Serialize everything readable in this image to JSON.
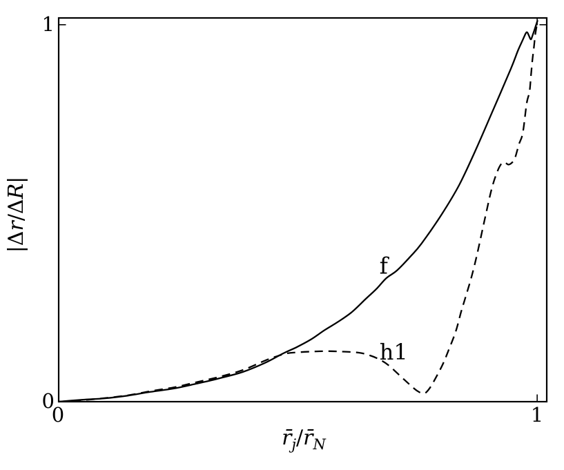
{
  "figure": {
    "background": "#ffffff",
    "line_color": "#000000"
  },
  "axes": {
    "ylabel_text": "|Δr/ΔR|",
    "ylabel_parts": [
      {
        "t": "|Δ"
      },
      {
        "t": "r"
      },
      {
        "t": "/Δ"
      },
      {
        "t": "R"
      },
      {
        "t": "|"
      }
    ],
    "xlabel_text": "r̄j/r̄N",
    "xlabel_parts": [
      {
        "t": "r̄"
      },
      {
        "t": "j"
      },
      {
        "t": "/"
      },
      {
        "t": "r̄"
      },
      {
        "t": "N"
      }
    ],
    "x_tick_labels": [
      "0",
      "1"
    ],
    "y_tick_labels": [
      "0",
      "1"
    ]
  },
  "chart_data": {
    "type": "line",
    "title": "",
    "xlabel": "r̄_j/r̄_N",
    "ylabel": "|Δr/ΔR|",
    "xlim": [
      0,
      1.02
    ],
    "ylim": [
      0,
      1.018
    ],
    "x_ticks": [
      0,
      1
    ],
    "y_ticks": [
      0,
      1
    ],
    "grid": false,
    "legend": "inline curve labels",
    "series": [
      {
        "name": "f",
        "line_style": "solid",
        "color": "#000000",
        "label_pos": {
          "x": 0.688,
          "y": 0.34,
          "anchor": "end"
        },
        "points": [
          [
            0.0,
            0.0
          ],
          [
            0.048,
            0.005
          ],
          [
            0.097,
            0.009
          ],
          [
            0.144,
            0.016
          ],
          [
            0.192,
            0.026
          ],
          [
            0.241,
            0.035
          ],
          [
            0.289,
            0.048
          ],
          [
            0.336,
            0.062
          ],
          [
            0.385,
            0.079
          ],
          [
            0.433,
            0.104
          ],
          [
            0.469,
            0.128
          ],
          [
            0.498,
            0.145
          ],
          [
            0.527,
            0.165
          ],
          [
            0.556,
            0.19
          ],
          [
            0.584,
            0.212
          ],
          [
            0.613,
            0.238
          ],
          [
            0.642,
            0.273
          ],
          [
            0.664,
            0.299
          ],
          [
            0.685,
            0.328
          ],
          [
            0.707,
            0.348
          ],
          [
            0.735,
            0.385
          ],
          [
            0.758,
            0.419
          ],
          [
            0.801,
            0.498
          ],
          [
            0.837,
            0.575
          ],
          [
            0.873,
            0.672
          ],
          [
            0.909,
            0.777
          ],
          [
            0.945,
            0.883
          ],
          [
            0.96,
            0.932
          ],
          [
            0.97,
            0.96
          ],
          [
            0.976,
            0.977
          ],
          [
            0.979,
            0.98
          ],
          [
            0.982,
            0.973
          ],
          [
            0.986,
            0.962
          ],
          [
            0.988,
            0.963
          ],
          [
            0.991,
            0.974
          ],
          [
            0.994,
            0.985
          ],
          [
            0.997,
            0.997
          ],
          [
            1.0,
            1.008
          ],
          [
            1.001,
            1.012
          ]
        ]
      },
      {
        "name": "h1",
        "line_style": "dashed",
        "color": "#000000",
        "label_pos": {
          "x": 0.7,
          "y": 0.112,
          "anchor": "middle"
        },
        "points": [
          [
            0.0,
            0.0
          ],
          [
            0.05,
            0.004
          ],
          [
            0.1,
            0.01
          ],
          [
            0.15,
            0.018
          ],
          [
            0.192,
            0.028
          ],
          [
            0.241,
            0.038
          ],
          [
            0.289,
            0.052
          ],
          [
            0.336,
            0.066
          ],
          [
            0.385,
            0.084
          ],
          [
            0.433,
            0.11
          ],
          [
            0.455,
            0.12
          ],
          [
            0.476,
            0.128
          ],
          [
            0.5,
            0.131
          ],
          [
            0.53,
            0.133
          ],
          [
            0.56,
            0.134
          ],
          [
            0.59,
            0.133
          ],
          [
            0.627,
            0.13
          ],
          [
            0.652,
            0.122
          ],
          [
            0.672,
            0.111
          ],
          [
            0.69,
            0.096
          ],
          [
            0.714,
            0.068
          ],
          [
            0.733,
            0.046
          ],
          [
            0.75,
            0.028
          ],
          [
            0.764,
            0.022
          ],
          [
            0.776,
            0.037
          ],
          [
            0.79,
            0.068
          ],
          [
            0.803,
            0.1
          ],
          [
            0.815,
            0.137
          ],
          [
            0.83,
            0.187
          ],
          [
            0.841,
            0.238
          ],
          [
            0.849,
            0.272
          ],
          [
            0.861,
            0.323
          ],
          [
            0.873,
            0.383
          ],
          [
            0.892,
            0.493
          ],
          [
            0.905,
            0.565
          ],
          [
            0.916,
            0.608
          ],
          [
            0.925,
            0.631
          ],
          [
            0.932,
            0.635
          ],
          [
            0.94,
            0.629
          ],
          [
            0.948,
            0.635
          ],
          [
            0.954,
            0.648
          ],
          [
            0.962,
            0.683
          ],
          [
            0.97,
            0.713
          ],
          [
            0.978,
            0.791
          ],
          [
            0.984,
            0.822
          ],
          [
            0.987,
            0.864
          ],
          [
            0.99,
            0.906
          ],
          [
            0.993,
            0.938
          ],
          [
            0.996,
            0.974
          ],
          [
            0.999,
            0.996
          ],
          [
            1.001,
            1.006
          ]
        ]
      }
    ]
  }
}
